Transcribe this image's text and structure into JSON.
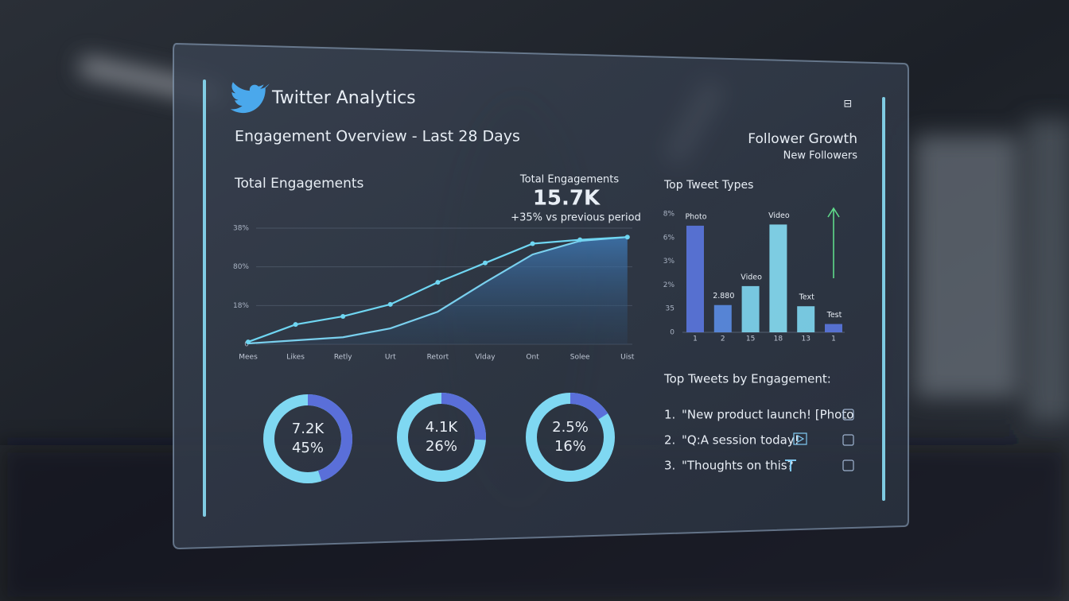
{
  "header": {
    "title": "Twitter Analytics",
    "subtitle": "Engagement Overview - Last 28 Days"
  },
  "summary": {
    "caption": "Total Engagements",
    "value": "15.7K",
    "change": "+35% vs previous period"
  },
  "follower_growth": {
    "title": "Follower Growth",
    "subtitle": "New Followers"
  },
  "chart_data": [
    {
      "type": "line",
      "title": "Total Engagements",
      "categories": [
        "Mees",
        "Likes",
        "Retly",
        "Urt",
        "Retort",
        "Vlday",
        "Ont",
        "Solee",
        "Uist"
      ],
      "series": [
        {
          "color": "#6fd6f2",
          "markers": true,
          "values": [
            0.6,
            5.1,
            7.2,
            10.3,
            16,
            21,
            26,
            27,
            27.7
          ]
        },
        {
          "color": "#7ad0ee",
          "area": true,
          "values": [
            0.2,
            1,
            1.8,
            4.1,
            8.4,
            16,
            23.2,
            26.7,
            27.7
          ]
        }
      ],
      "ylim": [
        0,
        30
      ],
      "yticks": [
        0,
        {
          "value": 10,
          "label": "18%"
        },
        {
          "value": 20,
          "label": "80%"
        },
        {
          "value": 30,
          "label": "38%"
        }
      ],
      "grid": true
    },
    {
      "type": "bar",
      "title": "Top Tweet Types",
      "categories": [
        "1",
        "2",
        "15",
        "18",
        "13",
        "1"
      ],
      "values": [
        4.5,
        1.15,
        1.95,
        4.55,
        1.1,
        0.35
      ],
      "bar_labels": [
        "Photo",
        "2.880",
        "Video",
        "Video",
        "Text",
        "Test"
      ],
      "colors": [
        "#5b78e0",
        "#5b8ee6",
        "#7fd8f2",
        "#86def4",
        "#7fd8f2",
        "#5b78e0"
      ],
      "ylim": [
        0,
        5
      ],
      "yticks": [
        0,
        {
          "value": 1,
          "label": "35"
        },
        {
          "value": 2,
          "label": "2%"
        },
        {
          "value": 3,
          "label": "3%"
        },
        {
          "value": 4,
          "label": "6%"
        },
        {
          "value": 5,
          "label": "8%"
        }
      ]
    },
    {
      "type": "donut",
      "label": "7.2K",
      "values": [
        45
      ],
      "value_labels": [
        "45%"
      ]
    },
    {
      "type": "donut",
      "label": "4.1K",
      "values": [
        26
      ],
      "value_labels": [
        "26%"
      ]
    },
    {
      "type": "donut",
      "label": "2.5%",
      "values": [
        16
      ],
      "value_labels": [
        "16%"
      ]
    }
  ],
  "top_tweets": {
    "title": "Top Tweets by Engagement:",
    "items": [
      {
        "rank": "1.",
        "text": "\"New product launch! [Photo"
      },
      {
        "rank": "2.",
        "text": "\"Q:A session today!"
      },
      {
        "rank": "3.",
        "text": "\"Thoughts on this?"
      }
    ]
  }
}
